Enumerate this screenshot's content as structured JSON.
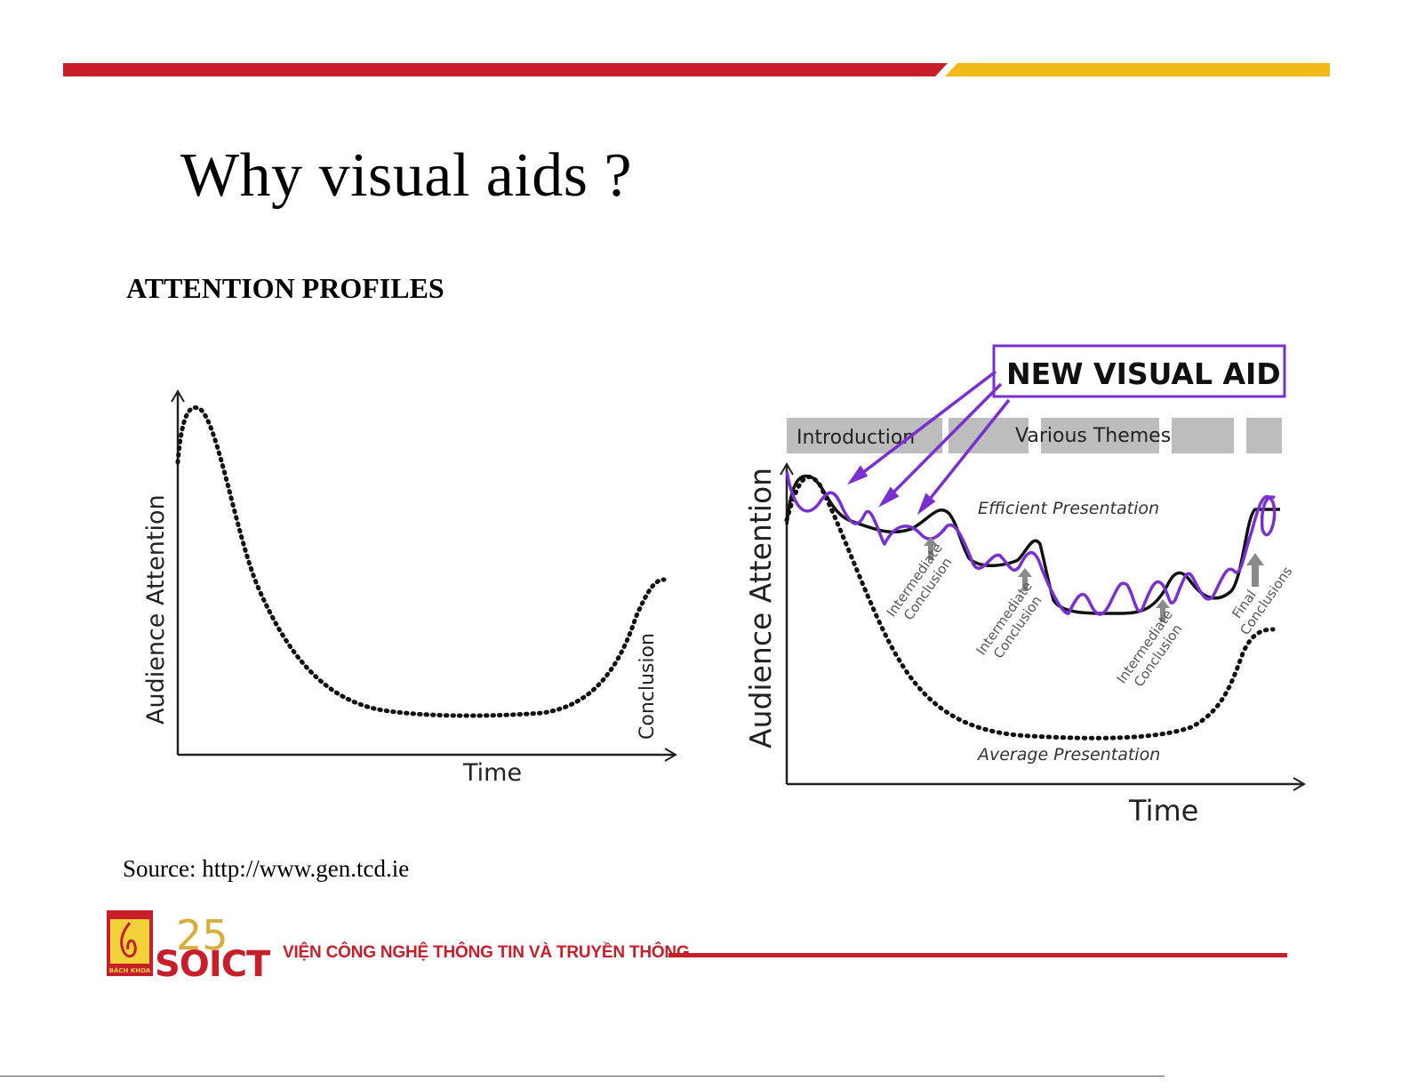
{
  "slide": {
    "title": "Why visual aids ?",
    "subtitle": "ATTENTION PROFILES",
    "source": "Source: http://www.gen.tcd.ie"
  },
  "left_figure": {
    "y_label": "Audience Attention",
    "x_label": "Time",
    "annotation": "Conclusion"
  },
  "right_figure": {
    "y_label": "Audience Attention",
    "x_label": "Time",
    "callout": "NEW VISUAL AID",
    "sections": [
      "Introduction",
      "Various Themes"
    ],
    "curve_labels": {
      "efficient": "Efficient Presentation",
      "average": "Average Presentation"
    },
    "markers": {
      "intermediate_1": [
        "Intermediate",
        "Conclusion"
      ],
      "intermediate_2": [
        "Intermediate",
        "Conclusion"
      ],
      "intermediate_3": [
        "Intermediate",
        "Conclusion"
      ],
      "final": [
        "Final",
        "Conclusions"
      ]
    }
  },
  "footer": {
    "institute": "VIỆN CÔNG NGHỆ THÔNG TIN VÀ TRUYỀN THÔNG",
    "logo_text": "SOICT",
    "anniversary": "25",
    "left_logo_text": "BÁCH KHOA"
  },
  "colors": {
    "red": "#c81e2a",
    "yellow": "#f2b91a",
    "purple": "#7a2fd0"
  }
}
